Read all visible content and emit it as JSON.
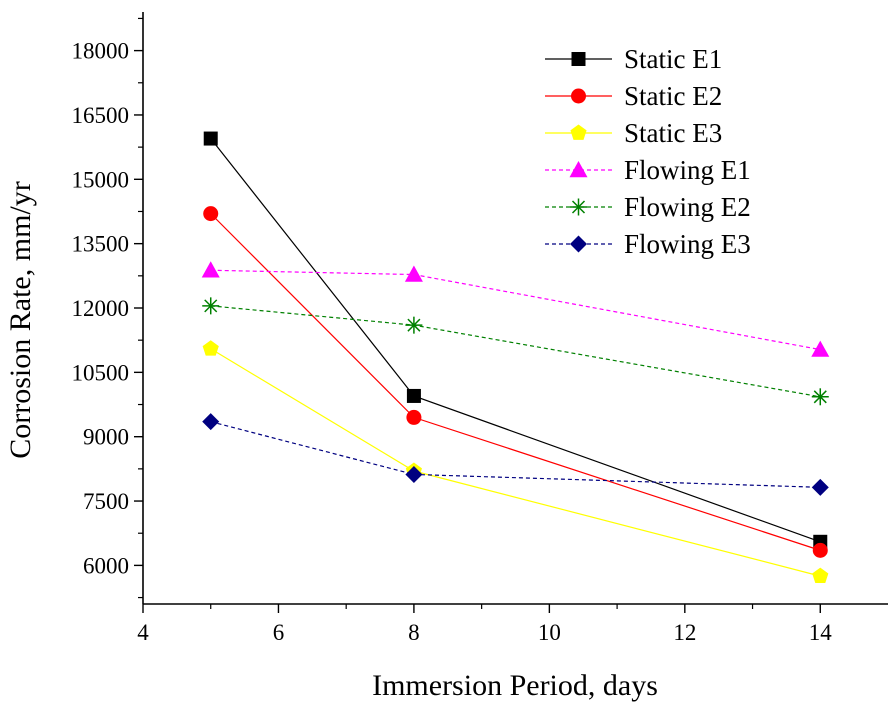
{
  "chart_data": {
    "type": "line",
    "title": "",
    "xlabel": "Immersion Period, days",
    "ylabel": "Corrosion Rate, mm/yr",
    "xlim": [
      4,
      15
    ],
    "ylim": [
      5100,
      18900
    ],
    "x_ticks": [
      4,
      6,
      8,
      10,
      12,
      14
    ],
    "y_ticks": [
      6000,
      7500,
      9000,
      10500,
      12000,
      13500,
      15000,
      16500,
      18000
    ],
    "x_tick_labels": [
      "4",
      "6",
      "8",
      "10",
      "12",
      "14"
    ],
    "y_tick_labels": [
      "6000",
      "7500",
      "9000",
      "10500",
      "12000",
      "13500",
      "15000",
      "16500",
      "18000"
    ],
    "grid": false,
    "legend_position": "top-right",
    "x": [
      5,
      8,
      14
    ],
    "series": [
      {
        "name": "Static E1",
        "values": [
          15950,
          9950,
          6550
        ],
        "color": "#000000",
        "marker": "square",
        "line_style": "solid"
      },
      {
        "name": "Static E2",
        "values": [
          14200,
          9450,
          6350
        ],
        "color": "#ff0000",
        "marker": "circle",
        "line_style": "solid"
      },
      {
        "name": "Static E3",
        "values": [
          11050,
          8200,
          5750
        ],
        "color": "#ffff00",
        "marker": "pentagon",
        "line_style": "solid"
      },
      {
        "name": "Flowing E1",
        "values": [
          12880,
          12780,
          11030
        ],
        "color": "#ff00ff",
        "marker": "triangle",
        "line_style": "dashed"
      },
      {
        "name": "Flowing E2",
        "values": [
          12050,
          11600,
          9930
        ],
        "color": "#008000",
        "marker": "star",
        "line_style": "dashed"
      },
      {
        "name": "Flowing E3",
        "values": [
          9350,
          8120,
          7820
        ],
        "color": "#000080",
        "marker": "diamond",
        "line_style": "dashed"
      }
    ]
  }
}
